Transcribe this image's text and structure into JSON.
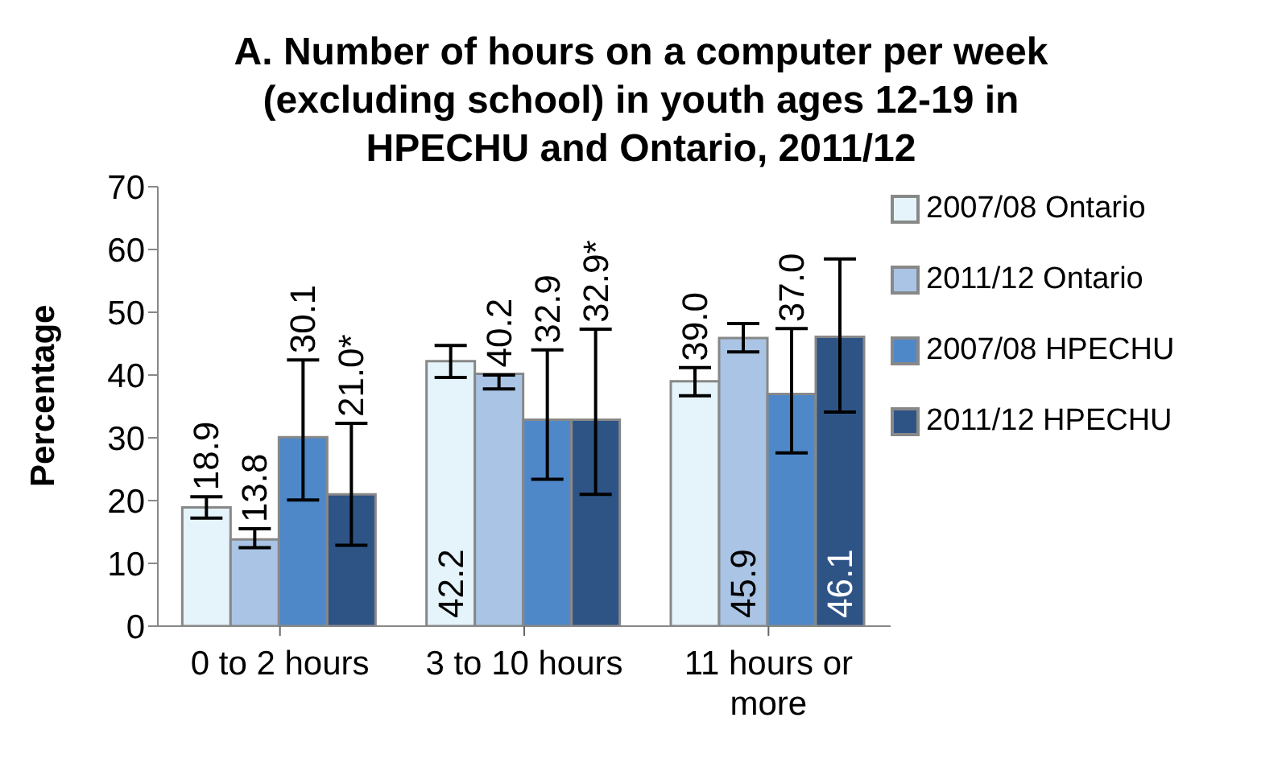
{
  "chart_data": {
    "type": "bar",
    "title": "A. Number of hours on a computer per week (excluding school) in youth ages 12-19 in HPECHU and Ontario, 2011/12",
    "ylabel": "Percentage",
    "categories": [
      "0 to 2 hours",
      "3 to 10 hours",
      "11 hours or more"
    ],
    "series": [
      {
        "name": "2007/08 Ontario",
        "color": "#e4f4fa",
        "values": [
          18.9,
          42.2,
          39.0
        ],
        "errors": [
          [
            17.2,
            20.6
          ],
          [
            39.6,
            44.7
          ],
          [
            36.7,
            41.2
          ]
        ],
        "value_labels": [
          "18.9",
          "42.2",
          "39.0"
        ]
      },
      {
        "name": "2011/12 Ontario",
        "color": "#a9c4e4",
        "values": [
          13.8,
          40.2,
          45.9
        ],
        "errors": [
          [
            12.5,
            15.5
          ],
          [
            37.8,
            40.0
          ],
          [
            43.7,
            48.2
          ]
        ],
        "value_labels": [
          "13.8",
          "40.2",
          "45.9"
        ]
      },
      {
        "name": "2007/08 HPECHU",
        "color": "#4f88c8",
        "values": [
          30.1,
          32.9,
          37.0
        ],
        "errors": [
          [
            20.1,
            42.4
          ],
          [
            23.4,
            44.0
          ],
          [
            27.6,
            47.4
          ]
        ],
        "value_labels": [
          "30.1",
          "32.9",
          "37.0"
        ]
      },
      {
        "name": "2011/12 HPECHU",
        "color": "#2e5486",
        "values": [
          21.0,
          32.9,
          46.1
        ],
        "errors": [
          [
            12.9,
            32.3
          ],
          [
            21.0,
            47.3
          ],
          [
            34.1,
            58.5
          ]
        ],
        "value_labels": [
          "21.0*",
          "32.9*",
          "46.1"
        ]
      }
    ],
    "ylim": [
      0,
      70
    ],
    "yticks": [
      0,
      10,
      20,
      30,
      40,
      50,
      60,
      70
    ],
    "grid": false,
    "legend": "right"
  }
}
